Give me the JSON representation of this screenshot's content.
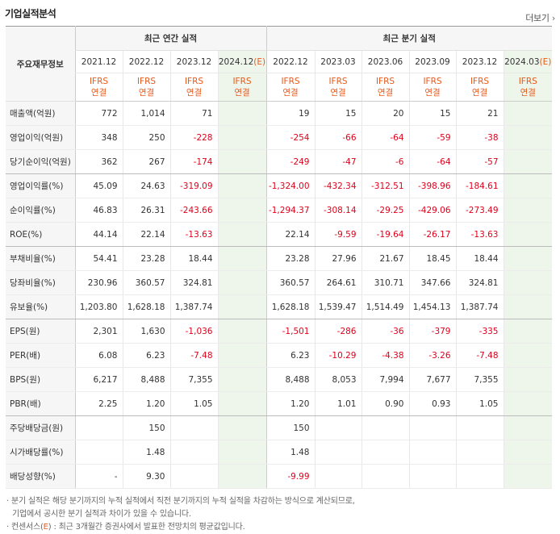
{
  "header": {
    "title": "기업실적분석",
    "more_label": "더보기",
    "more_arrow": "›"
  },
  "table": {
    "row_header": "주요재무정보",
    "annual_group": "최근 연간 실적",
    "quarter_group": "최근 분기 실적",
    "annual_periods": [
      "2021.12",
      "2022.12",
      "2023.12",
      "2024.12"
    ],
    "annual_est_suffix": "(E)",
    "quarter_periods": [
      "2022.12",
      "2023.03",
      "2023.06",
      "2023.09",
      "2023.12",
      "2024.03"
    ],
    "quarter_est_suffix": "(E)",
    "ifrs_line1": "IFRS",
    "ifrs_line2": "연결",
    "rows": [
      {
        "label": "매출액(억원)",
        "annual": [
          "772",
          "1,014",
          "71",
          ""
        ],
        "quarter": [
          "19",
          "15",
          "20",
          "15",
          "21",
          ""
        ]
      },
      {
        "label": "영업이익(억원)",
        "annual": [
          "348",
          "250",
          "-228",
          ""
        ],
        "quarter": [
          "-254",
          "-66",
          "-64",
          "-59",
          "-38",
          ""
        ]
      },
      {
        "label": "당기순이익(억원)",
        "annual": [
          "362",
          "267",
          "-174",
          ""
        ],
        "quarter": [
          "-249",
          "-47",
          "-6",
          "-64",
          "-57",
          ""
        ]
      },
      {
        "label": "영업이익률(%)",
        "annual": [
          "45.09",
          "24.63",
          "-319.09",
          ""
        ],
        "quarter": [
          "-1,324.00",
          "-432.34",
          "-312.51",
          "-398.96",
          "-184.61",
          ""
        ]
      },
      {
        "label": "순이익률(%)",
        "annual": [
          "46.83",
          "26.31",
          "-243.66",
          ""
        ],
        "quarter": [
          "-1,294.37",
          "-308.14",
          "-29.25",
          "-429.06",
          "-273.49",
          ""
        ]
      },
      {
        "label": "ROE(%)",
        "annual": [
          "44.14",
          "22.14",
          "-13.63",
          ""
        ],
        "quarter": [
          "22.14",
          "-9.59",
          "-19.64",
          "-26.17",
          "-13.63",
          ""
        ]
      },
      {
        "label": "부채비율(%)",
        "annual": [
          "54.41",
          "23.28",
          "18.44",
          ""
        ],
        "quarter": [
          "23.28",
          "27.96",
          "21.67",
          "18.45",
          "18.44",
          ""
        ]
      },
      {
        "label": "당좌비율(%)",
        "annual": [
          "230.96",
          "360.57",
          "324.81",
          ""
        ],
        "quarter": [
          "360.57",
          "264.61",
          "310.71",
          "347.66",
          "324.81",
          ""
        ]
      },
      {
        "label": "유보율(%)",
        "annual": [
          "1,203.80",
          "1,628.18",
          "1,387.74",
          ""
        ],
        "quarter": [
          "1,628.18",
          "1,539.47",
          "1,514.49",
          "1,454.13",
          "1,387.74",
          ""
        ]
      },
      {
        "label": "EPS(원)",
        "annual": [
          "2,301",
          "1,630",
          "-1,036",
          ""
        ],
        "quarter": [
          "-1,501",
          "-286",
          "-36",
          "-379",
          "-335",
          ""
        ]
      },
      {
        "label": "PER(배)",
        "annual": [
          "6.08",
          "6.23",
          "-7.48",
          ""
        ],
        "quarter": [
          "6.23",
          "-10.29",
          "-4.38",
          "-3.26",
          "-7.48",
          ""
        ]
      },
      {
        "label": "BPS(원)",
        "annual": [
          "6,217",
          "8,488",
          "7,355",
          ""
        ],
        "quarter": [
          "8,488",
          "8,053",
          "7,994",
          "7,677",
          "7,355",
          ""
        ]
      },
      {
        "label": "PBR(배)",
        "annual": [
          "2.25",
          "1.20",
          "1.05",
          ""
        ],
        "quarter": [
          "1.20",
          "1.01",
          "0.90",
          "0.93",
          "1.05",
          ""
        ]
      },
      {
        "label": "주당배당금(원)",
        "annual": [
          "",
          "150",
          "",
          ""
        ],
        "quarter": [
          "150",
          "",
          "",
          "",
          "",
          ""
        ]
      },
      {
        "label": "시가배당률(%)",
        "annual": [
          "",
          "1.48",
          "",
          ""
        ],
        "quarter": [
          "1.48",
          "",
          "",
          "",
          "",
          ""
        ]
      },
      {
        "label": "배당성향(%)",
        "annual": [
          "-",
          "9.30",
          "",
          ""
        ],
        "quarter": [
          "-9.99",
          "",
          "",
          "",
          "",
          ""
        ]
      }
    ]
  },
  "notes": {
    "line1": "· 분기 실적은 해당 분기까지의 누적 실적에서 직전 분기까지의 누적 실적을 차감하는 방식으로 계산되므로,",
    "line2": "기업에서 공시한 분기 실적과 차이가 있을 수 있습니다.",
    "line3_prefix": "· 컨센서스(",
    "line3_e": "E",
    "line3_suffix": ") : 최근 3개월간 증권사에서 발표한 전망치의 평균값입니다."
  },
  "colors": {
    "negative": "#e0001b",
    "ifrs": "#e8591a",
    "estimate_bg": "#eef6ec"
  }
}
